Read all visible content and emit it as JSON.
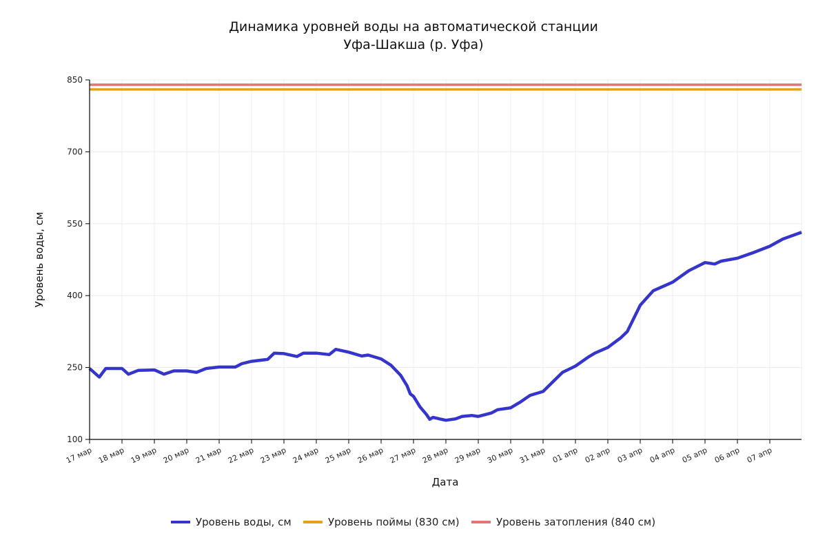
{
  "chart_data": {
    "type": "line",
    "title": [
      "Динамика уровней воды на автоматической станции",
      "Уфа-Шакша (р. Уфа)"
    ],
    "xlabel": "Дата",
    "ylabel": "Уровень воды, см",
    "ylim": [
      100,
      850
    ],
    "yticks": [
      100,
      250,
      400,
      550,
      700,
      850
    ],
    "xlim_days": [
      0,
      22
    ],
    "xticks": [
      "17 мар",
      "18 мар",
      "19 мар",
      "20 мар",
      "21 мар",
      "22 мар",
      "23 мар",
      "24 мар",
      "25 мар",
      "26 мар",
      "27 мар",
      "28 мар",
      "29 мар",
      "30 мар",
      "31 мар",
      "01 апр",
      "02 апр",
      "03 апр",
      "04 апр",
      "05 апр",
      "06 апр",
      "07 апр"
    ],
    "grid": true,
    "legend_position": "bottom",
    "series": [
      {
        "name": "Уровень воды, см",
        "color": "#3535cc",
        "x_days": [
          0,
          0.3,
          0.5,
          1.0,
          1.2,
          1.5,
          2.0,
          2.3,
          2.6,
          3.0,
          3.3,
          3.6,
          4.0,
          4.5,
          4.7,
          5.0,
          5.5,
          5.7,
          6.0,
          6.4,
          6.6,
          7.0,
          7.4,
          7.6,
          8.0,
          8.4,
          8.6,
          9.0,
          9.3,
          9.6,
          9.8,
          9.9,
          10.0,
          10.2,
          10.4,
          10.5,
          10.6,
          11.0,
          11.3,
          11.5,
          11.8,
          12.0,
          12.4,
          12.6,
          13.0,
          13.3,
          13.6,
          14.0,
          14.3,
          14.6,
          15.0,
          15.4,
          15.6,
          16.0,
          16.4,
          16.6,
          17.0,
          17.4,
          18.0,
          18.5,
          19.0,
          19.3,
          19.5,
          20.0,
          20.5,
          21.0,
          21.4,
          21.98
        ],
        "values": [
          248,
          230,
          248,
          248,
          236,
          244,
          245,
          236,
          243,
          243,
          240,
          248,
          251,
          251,
          258,
          263,
          267,
          280,
          279,
          273,
          280,
          280,
          277,
          288,
          282,
          274,
          276,
          268,
          255,
          234,
          212,
          195,
          190,
          168,
          152,
          142,
          146,
          140,
          143,
          148,
          150,
          148,
          155,
          162,
          166,
          178,
          192,
          200,
          220,
          240,
          253,
          272,
          280,
          292,
          312,
          325,
          380,
          410,
          428,
          452,
          469,
          466,
          472,
          478,
          490,
          503,
          518,
          532
        ]
      },
      {
        "name": "Уровень поймы (830 см)",
        "color": "#e3a21a",
        "level": 830
      },
      {
        "name": "Уровень затопления (840 см)",
        "color": "#e57373",
        "level": 840
      }
    ]
  }
}
